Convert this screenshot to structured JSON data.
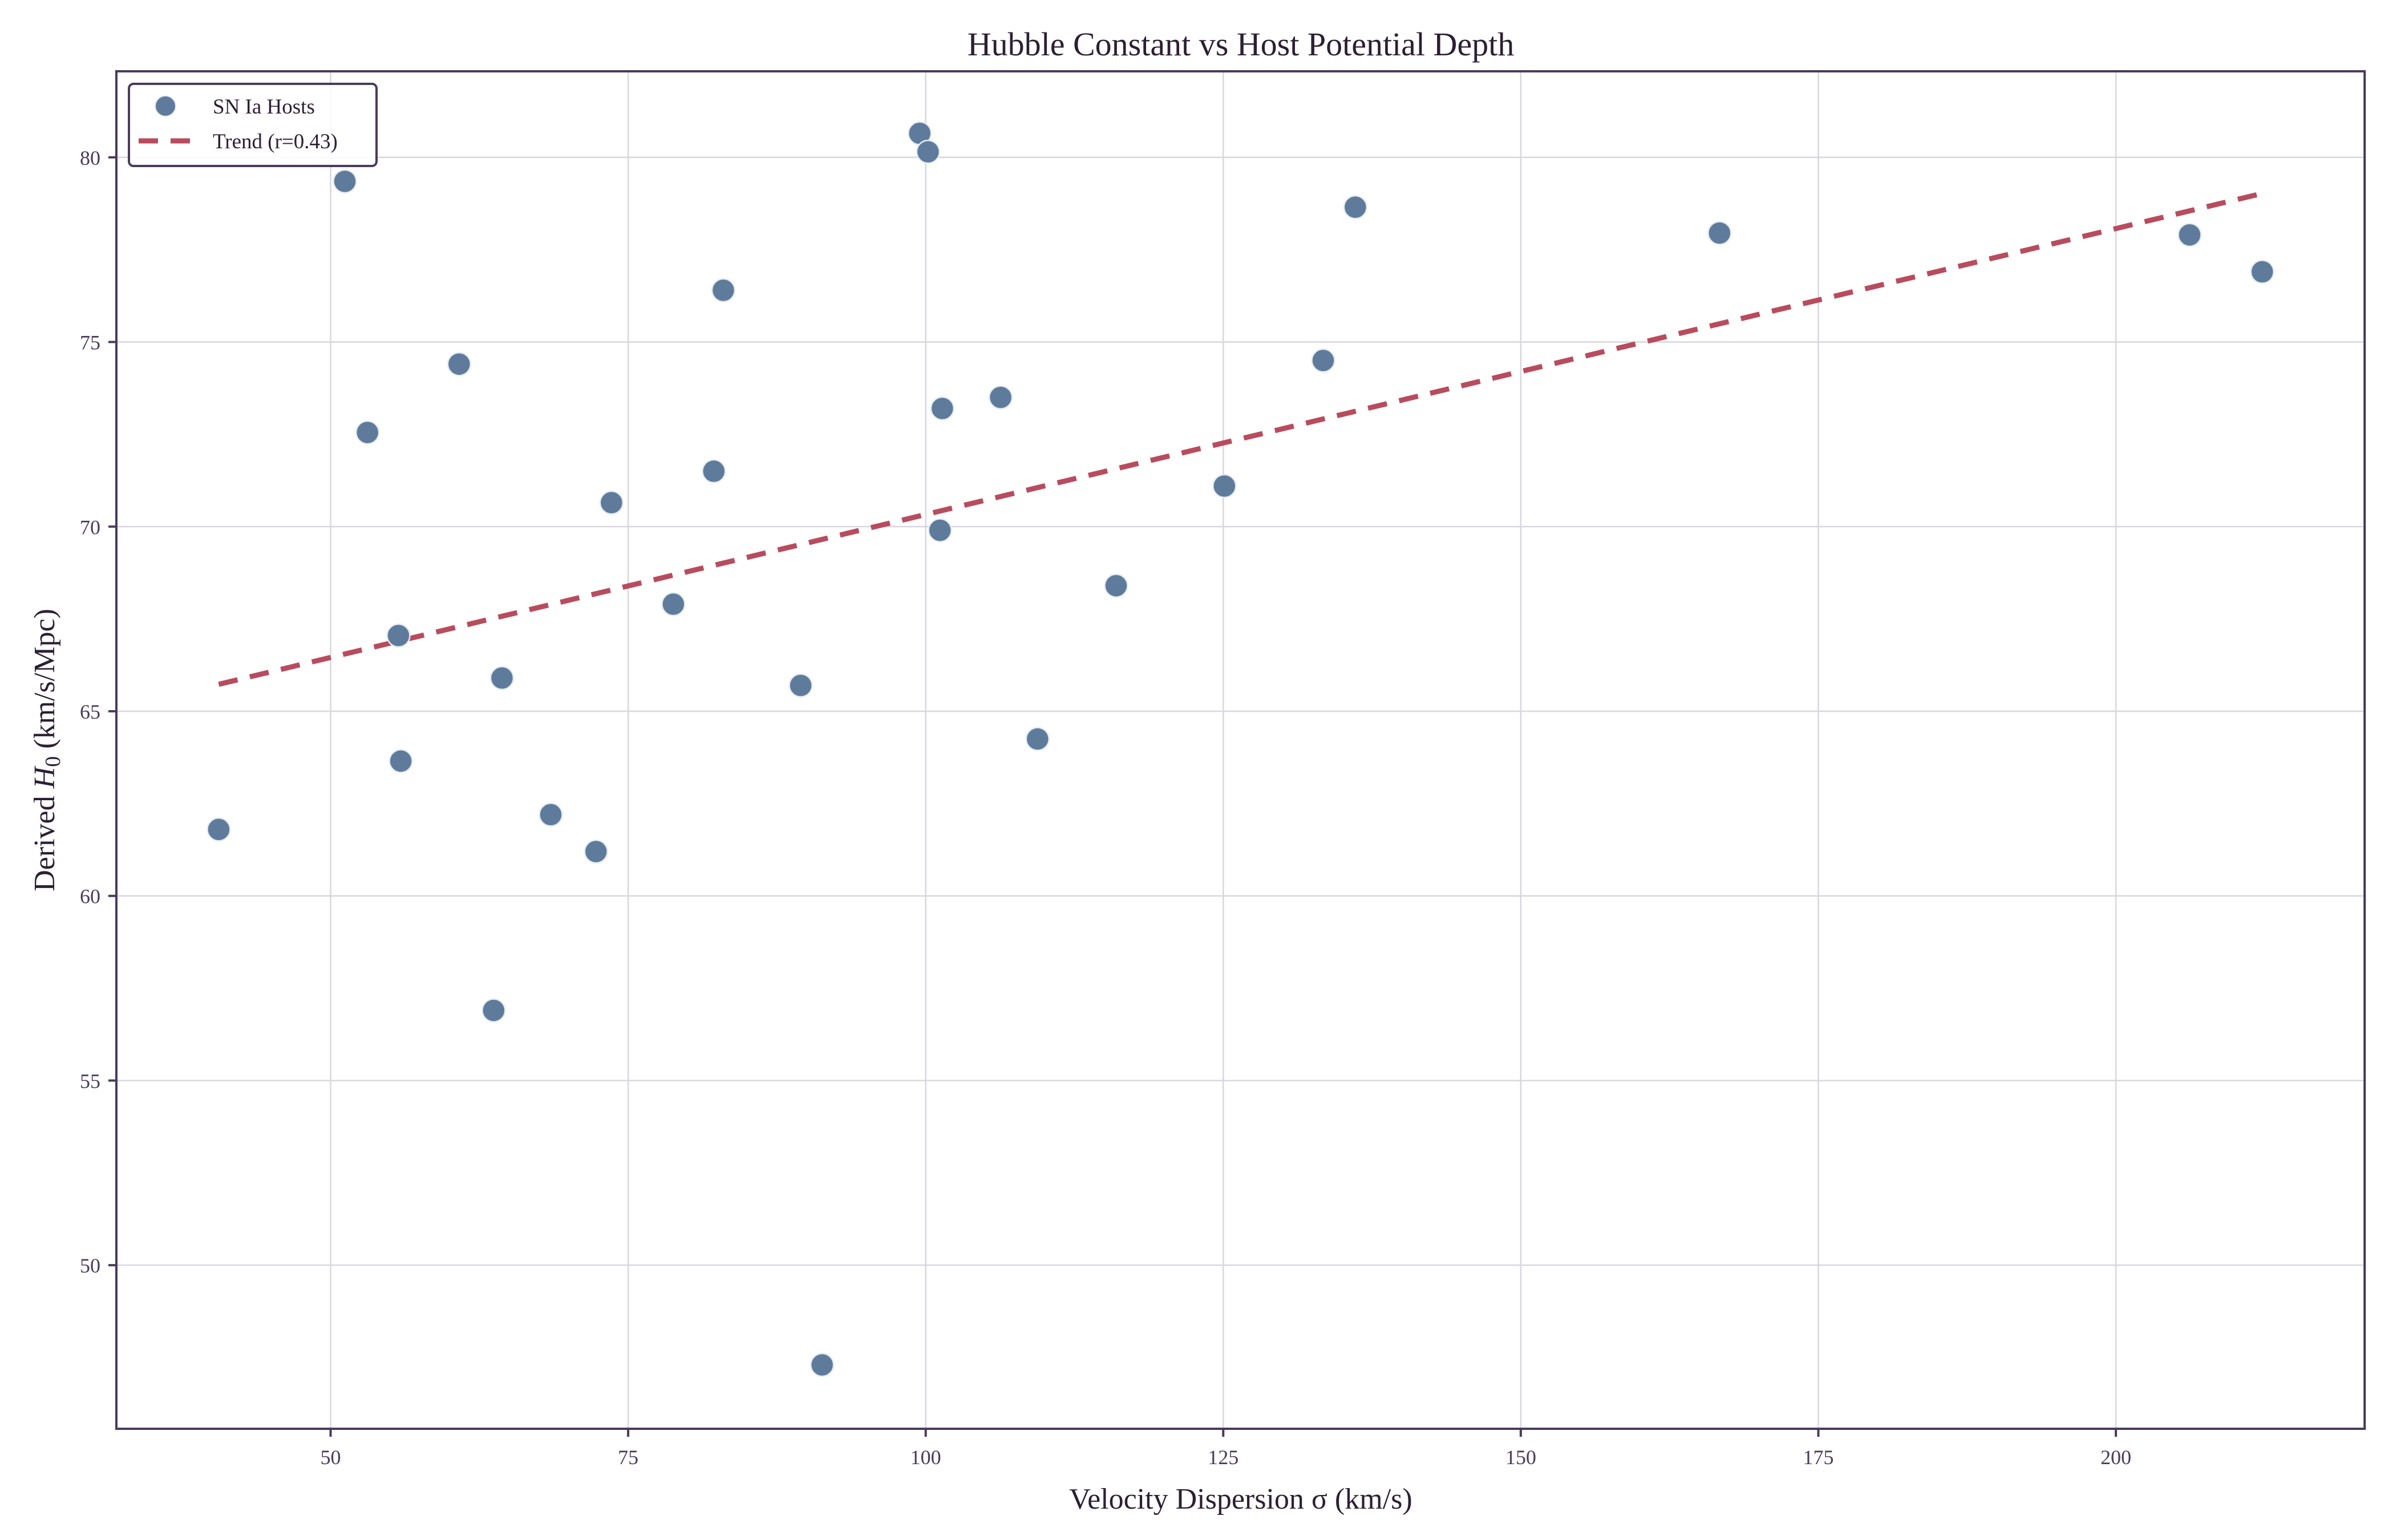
{
  "chart_data": {
    "type": "scatter",
    "title": "Hubble Constant vs Host Potential Depth",
    "xlabel": "Velocity Dispersion σ (km/s)",
    "ylabel_prefix": "Derived ",
    "ylabel_symbol": "H",
    "ylabel_subscript": "0",
    "ylabel_suffix": " (km/s/Mpc)",
    "xlim": [
      32.0,
      220.9
    ],
    "ylim": [
      45.57,
      82.33
    ],
    "xticks": [
      50,
      75,
      100,
      125,
      150,
      175,
      200
    ],
    "yticks": [
      50,
      55,
      60,
      65,
      70,
      75,
      80
    ],
    "grid": true,
    "legend_position": "upper left",
    "series": [
      {
        "name": "SN Ia Hosts",
        "kind": "scatter",
        "color": "#5f7b9c",
        "points": [
          [
            40.6,
            61.8
          ],
          [
            51.2,
            79.35
          ],
          [
            53.1,
            72.55
          ],
          [
            55.7,
            67.05
          ],
          [
            55.9,
            63.65
          ],
          [
            60.8,
            74.4
          ],
          [
            63.7,
            56.9
          ],
          [
            64.4,
            65.9
          ],
          [
            68.5,
            62.2
          ],
          [
            72.3,
            61.2
          ],
          [
            73.6,
            70.65
          ],
          [
            78.8,
            67.9
          ],
          [
            82.2,
            71.5
          ],
          [
            83.0,
            76.4
          ],
          [
            89.5,
            65.7
          ],
          [
            91.3,
            47.3
          ],
          [
            99.5,
            80.65
          ],
          [
            100.2,
            80.15
          ],
          [
            101.2,
            69.9
          ],
          [
            101.4,
            73.2
          ],
          [
            106.3,
            73.5
          ],
          [
            109.4,
            64.25
          ],
          [
            116.0,
            68.4
          ],
          [
            125.1,
            71.1
          ],
          [
            133.4,
            74.5
          ],
          [
            136.1,
            78.65
          ],
          [
            166.7,
            77.95
          ],
          [
            206.2,
            77.9
          ],
          [
            212.3,
            76.9
          ]
        ]
      },
      {
        "name": "Trend (r=0.43)",
        "kind": "line",
        "style": "dashed",
        "color": "#b84c5e",
        "points": [
          [
            40.6,
            65.73
          ],
          [
            212.0,
            79.0
          ]
        ]
      }
    ]
  },
  "legend": {
    "items": [
      {
        "label": "SN Ia Hosts"
      },
      {
        "label": "Trend (r=0.43)"
      }
    ]
  },
  "colors": {
    "axis": "#4a3b5c",
    "grid": "#d9d6dd",
    "text": "#2d1f33",
    "marker": "#5f7b9c",
    "trend": "#b84c5e"
  }
}
